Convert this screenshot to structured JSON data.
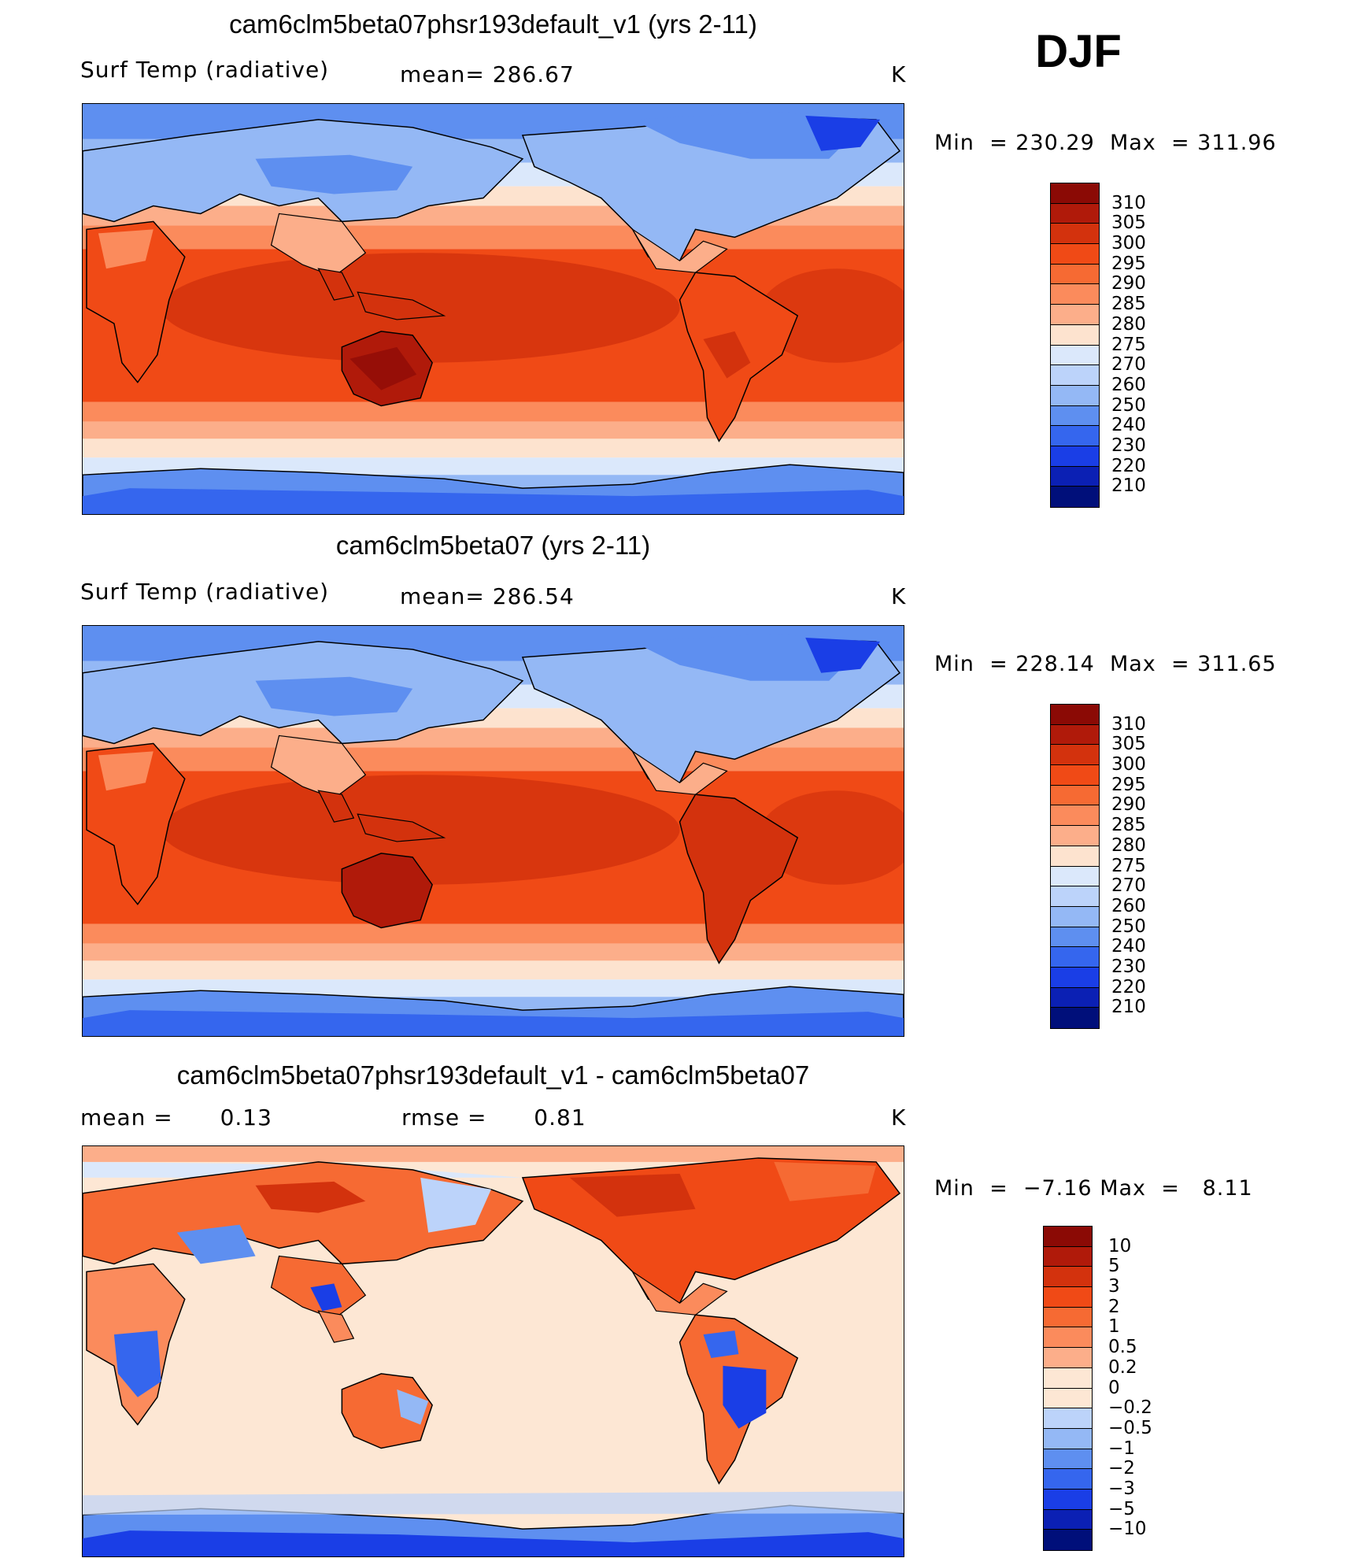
{
  "season": "DJF",
  "unit": "K",
  "panels": [
    {
      "title": "cam6clm5beta07phsr193default_v1 (yrs 2-11)",
      "variable": "Surf Temp (radiative)",
      "stat_label": "mean=",
      "stat_value": "286.67",
      "unit": "K",
      "min_label": "Min  =",
      "min_value": "230.29",
      "max_label": "Max  =",
      "max_value": "311.96"
    },
    {
      "title": "cam6clm5beta07 (yrs 2-11)",
      "variable": "Surf Temp (radiative)",
      "stat_label": "mean=",
      "stat_value": "286.54",
      "unit": "K",
      "min_label": "Min  =",
      "min_value": "228.14",
      "max_label": "Max  =",
      "max_value": "311.65"
    },
    {
      "title": "cam6clm5beta07phsr193default_v1 - cam6clm5beta07",
      "mean_label": "mean =",
      "mean_value": "0.13",
      "rmse_label": "rmse =",
      "rmse_value": "0.81",
      "unit": "K",
      "min_label": "Min  =",
      "min_value": "−7.16",
      "max_label": "Max  =",
      "max_value": "8.11"
    }
  ],
  "colorbars": {
    "absolute": {
      "labels": [
        "310",
        "305",
        "300",
        "295",
        "290",
        "285",
        "280",
        "275",
        "270",
        "260",
        "250",
        "240",
        "230",
        "220",
        "210"
      ],
      "colors": [
        "#8b0a05",
        "#b01a0a",
        "#d3320d",
        "#f04a16",
        "#f66a33",
        "#fb8b5c",
        "#fcae8a",
        "#fde3cf",
        "#dbe8fb",
        "#bcd3fa",
        "#94b8f5",
        "#5e8ff0",
        "#3566ee",
        "#1a3ee6",
        "#0b20b4",
        "#000f7a"
      ]
    },
    "difference": {
      "labels": [
        "10",
        "5",
        "3",
        "2",
        "1",
        "0.5",
        "0.2",
        "0",
        "−0.2",
        "−0.5",
        "−1",
        "−2",
        "−3",
        "−5",
        "−10"
      ],
      "colors": [
        "#8b0a05",
        "#b01a0a",
        "#d3320d",
        "#f04a16",
        "#f66a33",
        "#fb8b5c",
        "#fcae8a",
        "#fde7d4",
        "#fde7d4",
        "#bcd3fa",
        "#94b8f5",
        "#5e8ff0",
        "#3566ee",
        "#1a3ee6",
        "#0b20b4",
        "#000f7a"
      ]
    }
  }
}
